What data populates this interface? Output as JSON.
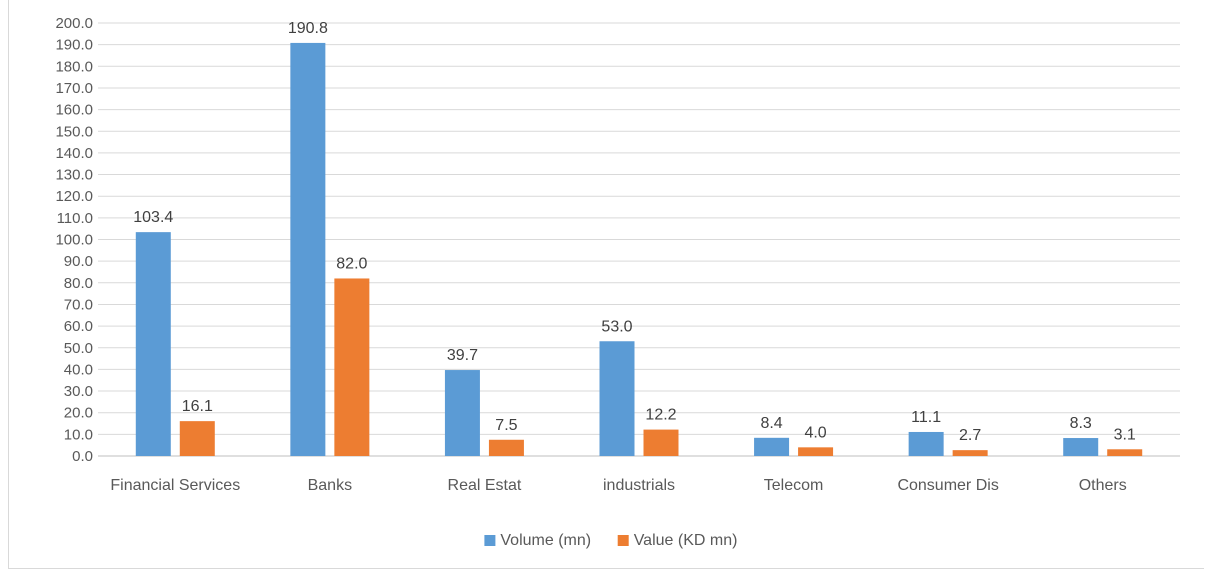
{
  "chart_data": {
    "type": "bar",
    "title": "",
    "xlabel": "",
    "ylabel": "",
    "categories": [
      "Financial Services",
      "Banks",
      "Real Estat",
      "industrials",
      "Telecom",
      "Consumer Dis",
      "Others"
    ],
    "series": [
      {
        "name": "Volume (mn)",
        "color": "#5b9bd5",
        "values": [
          103.4,
          190.8,
          39.7,
          53.0,
          8.4,
          11.1,
          8.3
        ],
        "labels": [
          "103.4",
          "190.8",
          "39.7",
          "53.0",
          "8.4",
          "11.1",
          "8.3"
        ]
      },
      {
        "name": "Value (KD mn)",
        "color": "#ed7d31",
        "values": [
          16.1,
          82.0,
          7.5,
          12.2,
          4.0,
          2.7,
          3.1
        ],
        "labels": [
          "16.1",
          "82.0",
          "7.5",
          "12.2",
          "4.0",
          "2.7",
          "3.1"
        ]
      }
    ],
    "ylim": [
      0,
      200
    ],
    "ytick_step": 10,
    "ytick_labels": [
      "0.0",
      "10.0",
      "20.0",
      "30.0",
      "40.0",
      "50.0",
      "60.0",
      "70.0",
      "80.0",
      "90.0",
      "100.0",
      "110.0",
      "120.0",
      "130.0",
      "140.0",
      "150.0",
      "160.0",
      "170.0",
      "180.0",
      "190.0",
      "200.0"
    ],
    "grid": true,
    "legend_position": "bottom"
  }
}
